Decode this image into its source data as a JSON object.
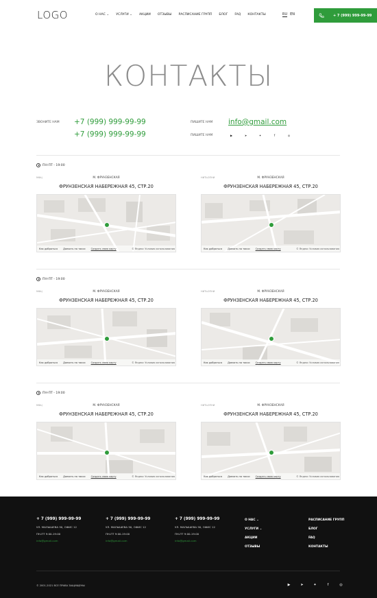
{
  "header": {
    "logo": "LOGO",
    "nav": [
      "О НАС ⌄",
      "УСЛУГИ ⌄",
      "АКЦИИ",
      "ОТЗЫВЫ",
      "РАСПИСАНИЕ ГРУПП",
      "БЛОГ",
      "FAQ",
      "КОНТАКТЫ"
    ],
    "lang_ru": "RU",
    "lang_en": "EN",
    "phone": "+ 7 (999) 999-99-99",
    "accent": "#2f9c3b"
  },
  "title": "КОНТАКТЫ",
  "contacts": {
    "call_label": "ЗВОНИТЕ НАМ",
    "phone1": "+7 (999) 999-99-99",
    "phone2": "+7 (999) 999-99-99",
    "write_label1": "ПИШИТЕ НАМ",
    "email": "info@gmail.com",
    "write_label2": "ПИШИТЕ НАМ",
    "socials": [
      "youtube-icon",
      "telegram-icon",
      "twitter-icon",
      "facebook-icon",
      "instagram-icon"
    ]
  },
  "offices": [
    {
      "hours": "ПН-ПТ - 19:00",
      "left": {
        "tag": "МФЦ",
        "metro": "М. ФРУНЗЕНСКАЯ",
        "address": "ФРУНЗЕНСКАЯ НАБЕРЕЖНАЯ 45, СТР.20"
      },
      "right": {
        "tag": "НИТЬОПНИ",
        "metro": "М. ФРУНЗЕНСКАЯ",
        "address": "ФРУНЗЕНСКАЯ НАБЕРЕЖНАЯ 45, СТР.20"
      }
    },
    {
      "hours": "ПН-ПТ - 19:00",
      "left": {
        "tag": "МФЦ",
        "metro": "М. ФРУНЗЕНСКАЯ",
        "address": "ФРУНЗЕНСКАЯ НАБЕРЕЖНАЯ 45, СТР.20"
      },
      "right": {
        "tag": "НИТЬОПНИ",
        "metro": "М. ФРУНЗЕНСКАЯ",
        "address": "ФРУНЗЕНСКАЯ НАБЕРЕЖНАЯ 45, СТР.20"
      }
    },
    {
      "hours": "ПН-ПТ - 19:00",
      "left": {
        "tag": "МФЦ",
        "metro": "М. ФРУНЗЕНСКАЯ",
        "address": "ФРУНЗЕНСКАЯ НАБЕРЕЖНАЯ 45, СТР.20"
      },
      "right": {
        "tag": "НИТЬОПНИ",
        "metro": "М. ФРУНЗЕНСКАЯ",
        "address": "ФРУНЗЕНСКАЯ НАБЕРЕЖНАЯ 45, СТР.20"
      }
    }
  ],
  "map": {
    "how_to_get": "Как добраться",
    "taxi": "Доехать на такси",
    "open_maps": "Создать свою карту",
    "copyright": "© Яндекс Условия использования"
  },
  "footer": {
    "cols": [
      {
        "phone": "+ 7 (999) 999-99-99",
        "addr1": "УЛ. МАЛЫШЕВА 90, ОФИС 12",
        "addr2": "ПН-ПТ 9:00-19:00",
        "mail": "info@gmail.com"
      },
      {
        "phone": "+ 7 (999) 999-99-99",
        "addr1": "УЛ. МАЛЫШЕВА 90, ОФИС 12",
        "addr2": "ПН-ПТ 9:00-19:00",
        "mail": "info@gmail.com"
      },
      {
        "phone": "+ 7 (999) 999-99-99",
        "addr1": "УЛ. МАЛЫШЕВА 90, ОФИС 12",
        "addr2": "ПН-ПТ 9:00-19:00",
        "mail": "info@gmail.com"
      }
    ],
    "menu1": [
      "О НАС ⌄",
      "УСЛУГИ ⌄",
      "АКЦИИ",
      "ОТЗЫВЫ"
    ],
    "menu2": [
      "РАСПИСАНИЕ ГРУПП",
      "БЛОГ",
      "FAQ",
      "КОНТАКТЫ"
    ],
    "copyright": "© 2001-2021 ВСЕ ПРАВА ЗАЩИЩЕНЫ",
    "socials": [
      "youtube-icon",
      "telegram-icon",
      "twitter-icon",
      "facebook-icon",
      "instagram-icon"
    ]
  }
}
